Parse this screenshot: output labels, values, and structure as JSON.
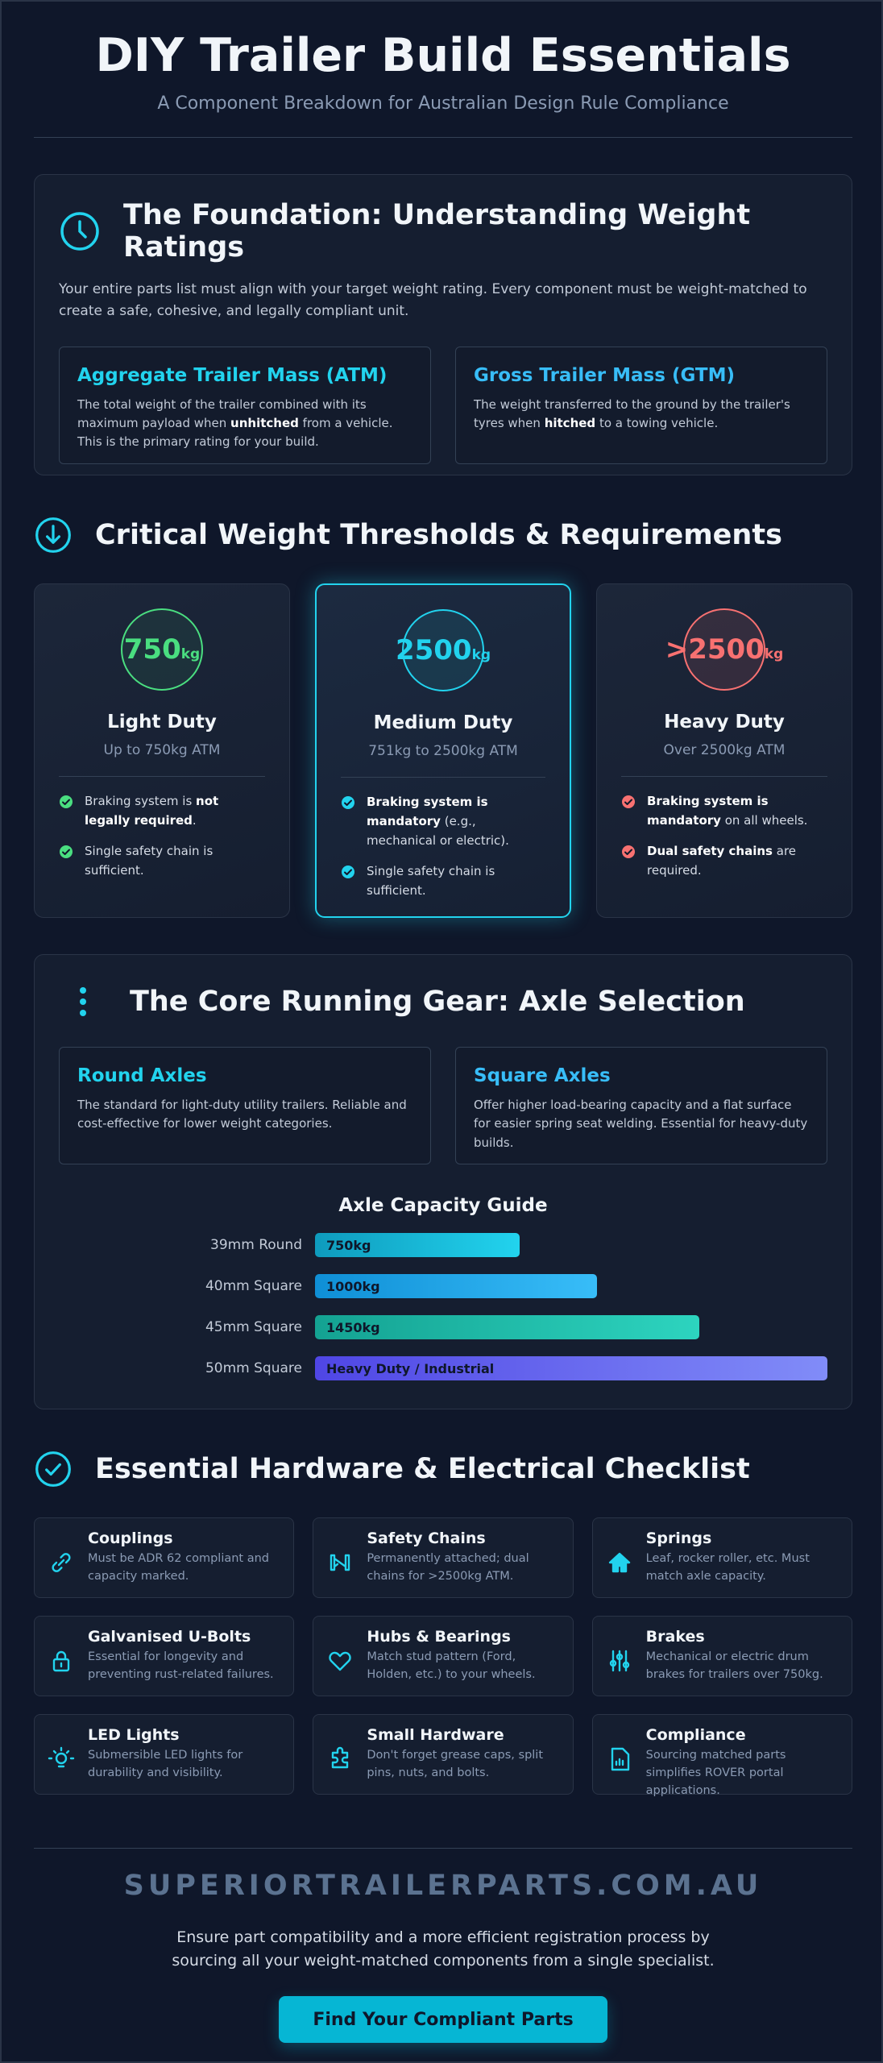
{
  "header": {
    "title": "DIY Trailer Build Essentials",
    "subtitle": "A Component Breakdown for Australian Design Rule Compliance"
  },
  "foundation": {
    "title": "The Foundation: Understanding Weight Ratings",
    "intro": "Your entire parts list must align with your target weight rating. Every component must be weight-matched to create a safe, cohesive, and legally compliant unit.",
    "cards": [
      {
        "title": "Aggregate Trailer Mass (ATM)",
        "parts": [
          "The total weight of the trailer combined with its maximum payload when ",
          {
            "strong": "unhitched"
          },
          " from a vehicle. This is the primary rating for your build."
        ]
      },
      {
        "title": "Gross Trailer Mass (GTM)",
        "parts": [
          "The weight transferred to the ground by the trailer's tyres when ",
          {
            "strong": "hitched"
          },
          " to a towing vehicle."
        ]
      }
    ]
  },
  "thresholds": {
    "title": "Critical Weight Thresholds & Requirements",
    "tiers": [
      {
        "value": "750",
        "unit": "kg",
        "name": "Light Duty",
        "range": "Up to 750kg ATM",
        "items": [
          [
            "Braking system is ",
            {
              "strong": "not legally required"
            },
            "."
          ],
          [
            "Single safety chain is sufficient."
          ]
        ]
      },
      {
        "value": "2500",
        "unit": "kg",
        "name": "Medium Duty",
        "range": "751kg to 2500kg ATM",
        "items": [
          [
            {
              "strong": "Braking system is mandatory"
            },
            " (e.g., mechanical or electric)."
          ],
          [
            "Single safety chain is sufficient."
          ]
        ]
      },
      {
        "value": ">2500",
        "unit": "kg",
        "name": "Heavy Duty",
        "range": "Over 2500kg ATM",
        "items": [
          [
            {
              "strong": "Braking system is mandatory"
            },
            " on all wheels."
          ],
          [
            {
              "strong": "Dual safety chains"
            },
            " are required."
          ]
        ]
      }
    ]
  },
  "gear": {
    "title": "The Core Running Gear: Axle Selection",
    "cards": [
      {
        "title": "Round Axles",
        "parts": [
          "The standard for light-duty utility trailers. Reliable and cost-effective for lower weight categories."
        ]
      },
      {
        "title": "Square Axles",
        "parts": [
          "Offer higher load-bearing capacity and a flat surface for easier spring seat welding. Essential for heavy-duty builds."
        ]
      }
    ],
    "guide": {
      "title": "Axle Capacity Guide",
      "rows": [
        {
          "label": "39mm Round",
          "bar": "750kg"
        },
        {
          "label": "40mm Square",
          "bar": "1000kg"
        },
        {
          "label": "45mm Square",
          "bar": "1450kg"
        },
        {
          "label": "50mm Square",
          "bar": "Heavy Duty / Industrial"
        }
      ]
    }
  },
  "hardware": {
    "title": "Essential Hardware & Electrical Checklist",
    "items": [
      {
        "title": "Couplings",
        "desc": "Must be ADR 62 compliant and capacity marked."
      },
      {
        "title": "Safety Chains",
        "desc": "Permanently attached; dual chains for >2500kg ATM."
      },
      {
        "title": "Springs",
        "desc": "Leaf, rocker roller, etc. Must match axle capacity."
      },
      {
        "title": "Galvanised U-Bolts",
        "desc": "Essential for longevity and preventing rust-related failures."
      },
      {
        "title": "Hubs & Bearings",
        "desc": "Match stud pattern (Ford, Holden, etc.) to your wheels."
      },
      {
        "title": "Brakes",
        "desc": "Mechanical or electric drum brakes for trailers over 750kg."
      },
      {
        "title": "LED Lights",
        "desc": "Submersible LED lights for durability and visibility."
      },
      {
        "title": "Small Hardware",
        "desc": "Don't forget grease caps, split pins, nuts, and bolts."
      },
      {
        "title": "Compliance",
        "desc": "Sourcing matched parts simplifies ROVER portal applications."
      }
    ]
  },
  "footer": {
    "brand": "SUPERIORTRAILERPARTS.COM.AU",
    "text": "Ensure part compatibility and a more efficient registration process by sourcing all your weight-matched components from a single specialist.",
    "button": "Find Your Compliant Parts"
  }
}
